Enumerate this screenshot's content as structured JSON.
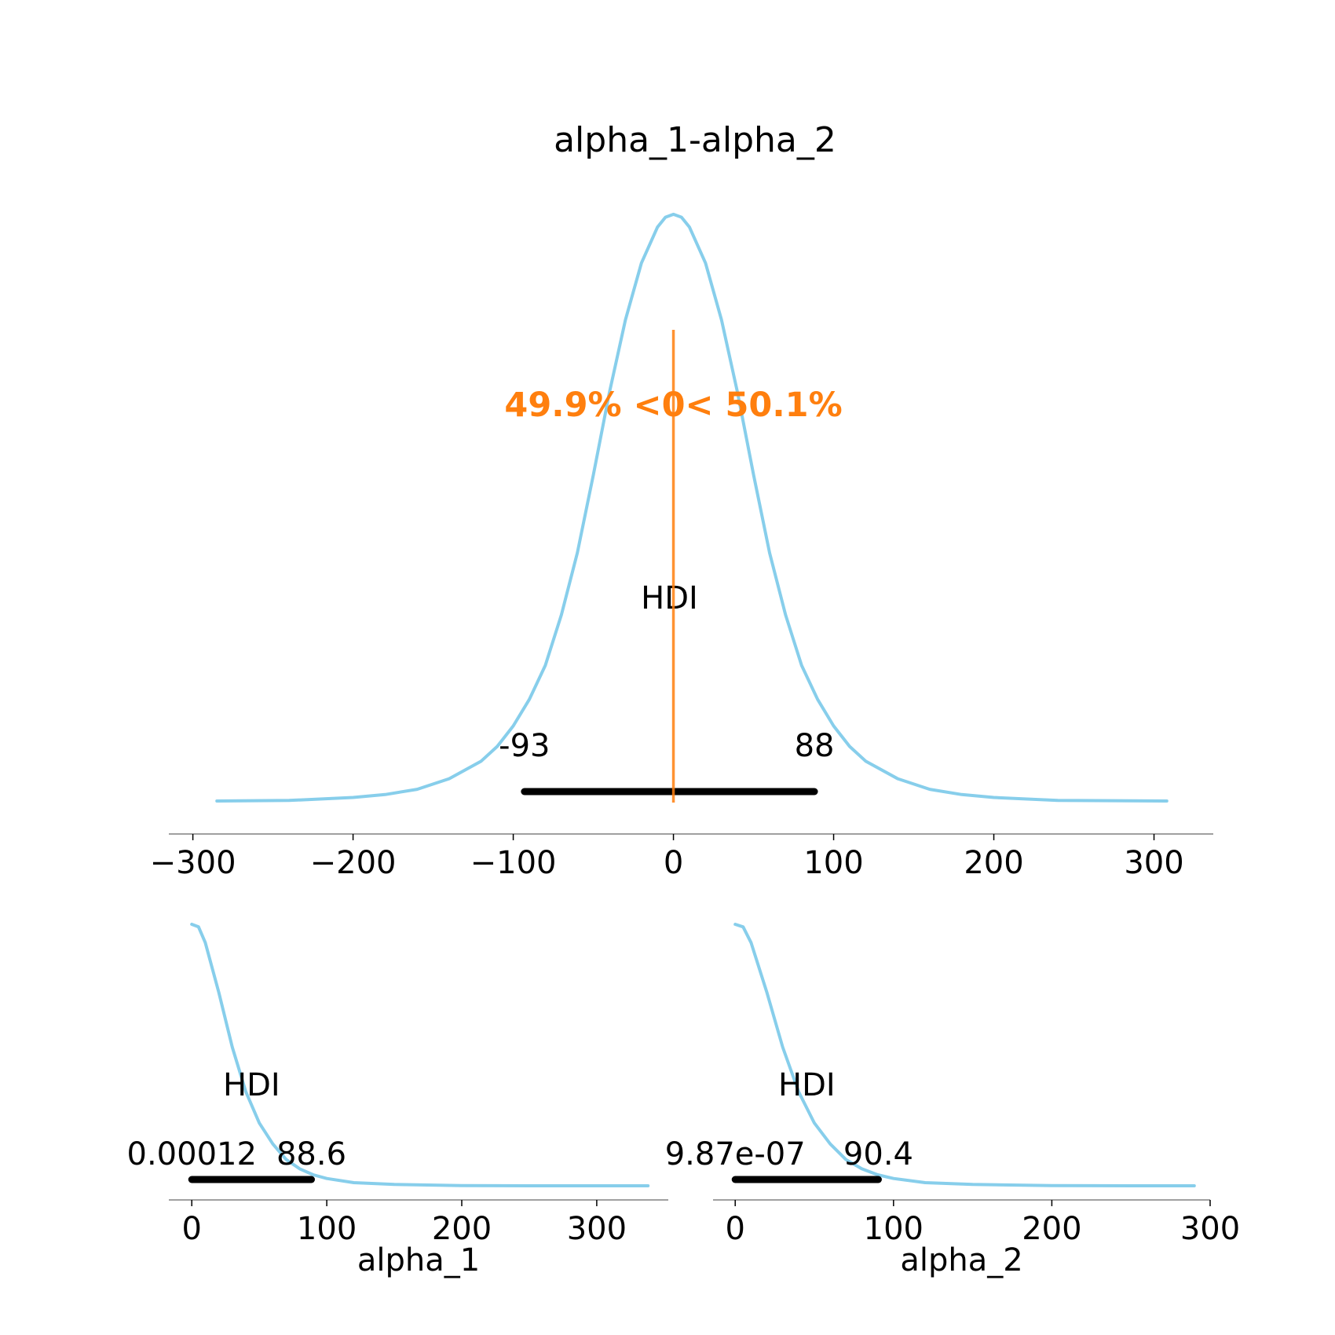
{
  "chart_data": [
    {
      "type": "line",
      "title": "alpha_1-alpha_2",
      "xlabel": "",
      "x_ticks": [
        -300,
        -200,
        -100,
        0,
        100,
        200,
        300
      ],
      "x_tick_labels": [
        "−300",
        "−200",
        "−100",
        "0",
        "100",
        "200",
        "300"
      ],
      "xlim": [
        -315,
        337
      ],
      "ylim": [
        0,
        1.04
      ],
      "series": [
        {
          "color": "#87CEEB",
          "x": [
            -285,
            -240,
            -200,
            -180,
            -160,
            -140,
            -120,
            -110,
            -100,
            -90,
            -80,
            -70,
            -60,
            -50,
            -40,
            -30,
            -20,
            -10,
            -5,
            0,
            5,
            10,
            20,
            30,
            40,
            50,
            60,
            70,
            80,
            90,
            100,
            110,
            120,
            140,
            160,
            180,
            200,
            240,
            308
          ],
          "y": [
            0.0,
            0.001,
            0.006,
            0.011,
            0.02,
            0.038,
            0.068,
            0.093,
            0.128,
            0.173,
            0.231,
            0.317,
            0.423,
            0.556,
            0.696,
            0.82,
            0.917,
            0.978,
            0.995,
            1.0,
            0.995,
            0.978,
            0.917,
            0.82,
            0.696,
            0.556,
            0.423,
            0.317,
            0.231,
            0.173,
            0.128,
            0.093,
            0.068,
            0.038,
            0.02,
            0.011,
            0.006,
            0.001,
            0.0
          ]
        }
      ],
      "hdi": {
        "label": "HDI",
        "low": -93,
        "high": 88,
        "low_label": "-93",
        "high_label": "88"
      },
      "reference": {
        "value": 0,
        "text": "49.9% <0< 50.1%",
        "color": "#FF7F0E"
      },
      "grid": false
    },
    {
      "type": "line",
      "title": "",
      "xlabel": "alpha_1",
      "x_ticks": [
        0,
        100,
        200,
        300
      ],
      "x_tick_labels": [
        "0",
        "100",
        "200",
        "300"
      ],
      "xlim": [
        -17,
        353
      ],
      "ylim": [
        0,
        1.06
      ],
      "series": [
        {
          "color": "#87CEEB",
          "x": [
            0,
            5,
            10,
            20,
            30,
            40,
            50,
            60,
            70,
            80,
            90,
            100,
            120,
            150,
            200,
            250,
            338
          ],
          "y": [
            1.0,
            0.99,
            0.93,
            0.74,
            0.53,
            0.36,
            0.24,
            0.16,
            0.1,
            0.065,
            0.042,
            0.028,
            0.012,
            0.005,
            0.001,
            0.0,
            0.0
          ]
        }
      ],
      "hdi": {
        "label": "HDI",
        "low": 0.00012,
        "high": 88.6,
        "low_label": "0.00012",
        "high_label": "88.6"
      },
      "grid": false
    },
    {
      "type": "line",
      "title": "",
      "xlabel": "alpha_2",
      "x_ticks": [
        0,
        100,
        200,
        300
      ],
      "x_tick_labels": [
        "0",
        "100",
        "200",
        "300"
      ],
      "xlim": [
        -14,
        300
      ],
      "ylim": [
        0,
        1.06
      ],
      "series": [
        {
          "color": "#87CEEB",
          "x": [
            0,
            5,
            10,
            20,
            30,
            40,
            50,
            60,
            70,
            80,
            90,
            100,
            120,
            150,
            200,
            250,
            290
          ],
          "y": [
            1.0,
            0.99,
            0.93,
            0.74,
            0.53,
            0.36,
            0.24,
            0.16,
            0.1,
            0.065,
            0.042,
            0.028,
            0.012,
            0.005,
            0.001,
            0.0,
            0.0
          ]
        }
      ],
      "hdi": {
        "label": "HDI",
        "low": 9.87e-07,
        "high": 90.4,
        "low_label": "9.87e-07",
        "high_label": "90.4"
      },
      "grid": false
    }
  ]
}
